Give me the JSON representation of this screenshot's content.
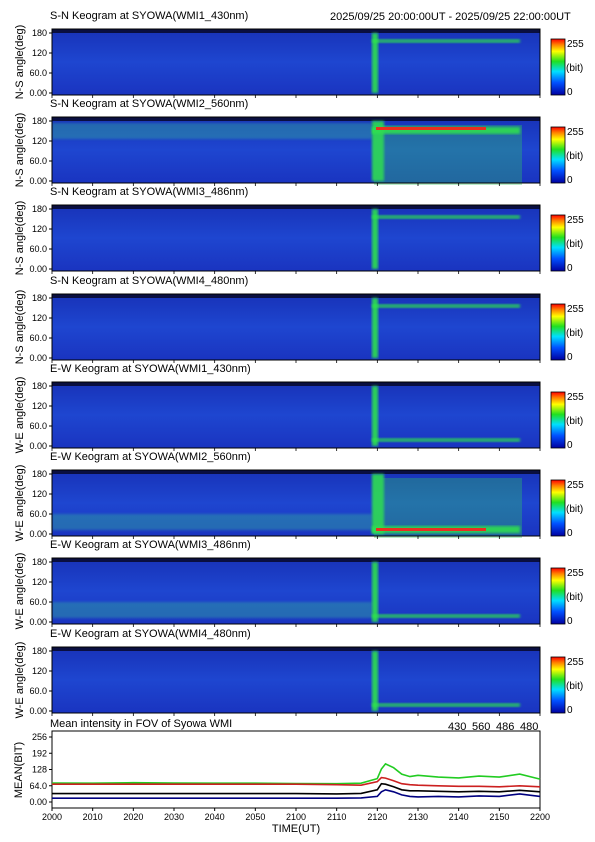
{
  "header": {
    "time_range": "2025/09/25 20:00:00UT - 2025/09/25 22:00:00UT"
  },
  "colors": {
    "panel_bg": "#1a2ec8",
    "aurora": "#2ee84a",
    "hot": "#e83020",
    "line_430": "#000080",
    "line_560": "#22cc22",
    "line_486": "#cc2020",
    "line_480": "#000000"
  },
  "colorbar": {
    "max": "255",
    "unit": "(bit)",
    "min": "0"
  },
  "keograms": [
    {
      "title": "S-N Keogram at SYOWA(WMI1_430nm)",
      "ylabel": "N-S angle(deg)",
      "yticks": [
        "180",
        "120",
        "60.0",
        "0.00"
      ]
    },
    {
      "title": "S-N Keogram at SYOWA(WMI2_560nm)",
      "ylabel": "N-S angle(deg)",
      "yticks": [
        "180",
        "120",
        "60.0",
        "0.00"
      ]
    },
    {
      "title": "S-N Keogram at SYOWA(WMI3_486nm)",
      "ylabel": "N-S angle(deg)",
      "yticks": [
        "180",
        "120",
        "60.0",
        "0.00"
      ]
    },
    {
      "title": "S-N Keogram at SYOWA(WMI4_480nm)",
      "ylabel": "N-S angle(deg)",
      "yticks": [
        "180",
        "120",
        "60.0",
        "0.00"
      ]
    },
    {
      "title": "E-W Keogram at SYOWA(WMI1_430nm)",
      "ylabel": "W-E angle(deg)",
      "yticks": [
        "180",
        "120",
        "60.0",
        "0.00"
      ]
    },
    {
      "title": "E-W Keogram at SYOWA(WMI2_560nm)",
      "ylabel": "W-E angle(deg)",
      "yticks": [
        "180",
        "120",
        "60.0",
        "0.00"
      ]
    },
    {
      "title": "E-W Keogram at SYOWA(WMI3_486nm)",
      "ylabel": "W-E angle(deg)",
      "yticks": [
        "180",
        "120",
        "60.0",
        "0.00"
      ]
    },
    {
      "title": "E-W Keogram at SYOWA(WMI4_480nm)",
      "ylabel": "W-E angle(deg)",
      "yticks": [
        "180",
        "120",
        "60.0",
        "0.00"
      ]
    }
  ],
  "chart_data": {
    "type": "line",
    "title": "Mean intensity in FOV of Syowa WMI",
    "xlabel": "TIME(UT)",
    "ylabel": "MEAN(BIT)",
    "x_tick_labels": [
      "2000",
      "2010",
      "2020",
      "2030",
      "2040",
      "2050",
      "2100",
      "2110",
      "2120",
      "2130",
      "2140",
      "2150",
      "2200"
    ],
    "y_tick_labels": [
      "256",
      "192",
      "128",
      "64.0",
      "0.00"
    ],
    "ylim": [
      0,
      256
    ],
    "x_unit": "minutes since 20:00 UT",
    "x": [
      0,
      10,
      20,
      30,
      40,
      50,
      60,
      70,
      76,
      80,
      81,
      82,
      84,
      86,
      88,
      90,
      95,
      100,
      105,
      110,
      115,
      120
    ],
    "series": [
      {
        "name": "430",
        "values": [
          15,
          15,
          15,
          15,
          15,
          15,
          15,
          15,
          16,
          22,
          40,
          48,
          40,
          28,
          22,
          20,
          22,
          20,
          24,
          22,
          32,
          22
        ]
      },
      {
        "name": "560",
        "values": [
          75,
          74,
          76,
          75,
          74,
          74,
          73,
          72,
          74,
          92,
          130,
          150,
          135,
          110,
          100,
          105,
          98,
          95,
          102,
          98,
          110,
          90
        ]
      },
      {
        "name": "486",
        "values": [
          70,
          70,
          70,
          70,
          70,
          70,
          70,
          68,
          66,
          80,
          96,
          94,
          84,
          72,
          68,
          66,
          64,
          62,
          62,
          60,
          64,
          60
        ]
      },
      {
        "name": "480",
        "values": [
          33,
          33,
          33,
          33,
          33,
          33,
          33,
          32,
          34,
          48,
          72,
          70,
          60,
          48,
          44,
          44,
          42,
          40,
          42,
          40,
          46,
          40
        ]
      }
    ]
  }
}
